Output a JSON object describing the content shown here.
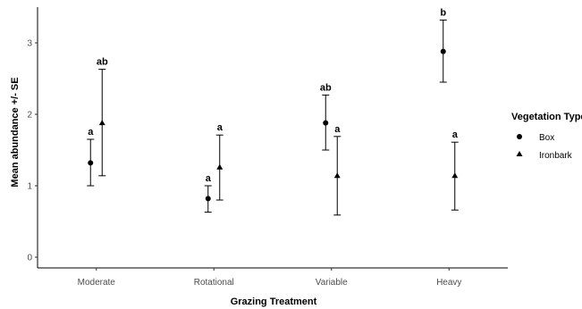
{
  "chart_data": {
    "type": "scatter",
    "xlabel": "Grazing Treatment",
    "ylabel": "Mean abundance +/- SE",
    "ylim": [
      -0.15,
      3.5
    ],
    "yticks": [
      0,
      1,
      2,
      3
    ],
    "categories": [
      "Moderate",
      "Rotational",
      "Variable",
      "Heavy"
    ],
    "legend": {
      "title": "Vegetation Type",
      "placement": "right"
    },
    "series": [
      {
        "name": "Box",
        "marker": "circle",
        "values": [
          1.32,
          0.82,
          1.88,
          2.88
        ],
        "lower": [
          1.0,
          0.63,
          1.5,
          2.45
        ],
        "upper": [
          1.65,
          1.0,
          2.27,
          3.32
        ],
        "labels": [
          "a",
          "a",
          "ab",
          "b"
        ]
      },
      {
        "name": "Ironbark",
        "marker": "triangle",
        "values": [
          1.88,
          1.26,
          1.14,
          1.14
        ],
        "lower": [
          1.14,
          0.8,
          0.59,
          0.66
        ],
        "upper": [
          2.63,
          1.71,
          1.69,
          1.61
        ],
        "labels": [
          "ab",
          "a",
          "a",
          "a"
        ]
      }
    ]
  }
}
